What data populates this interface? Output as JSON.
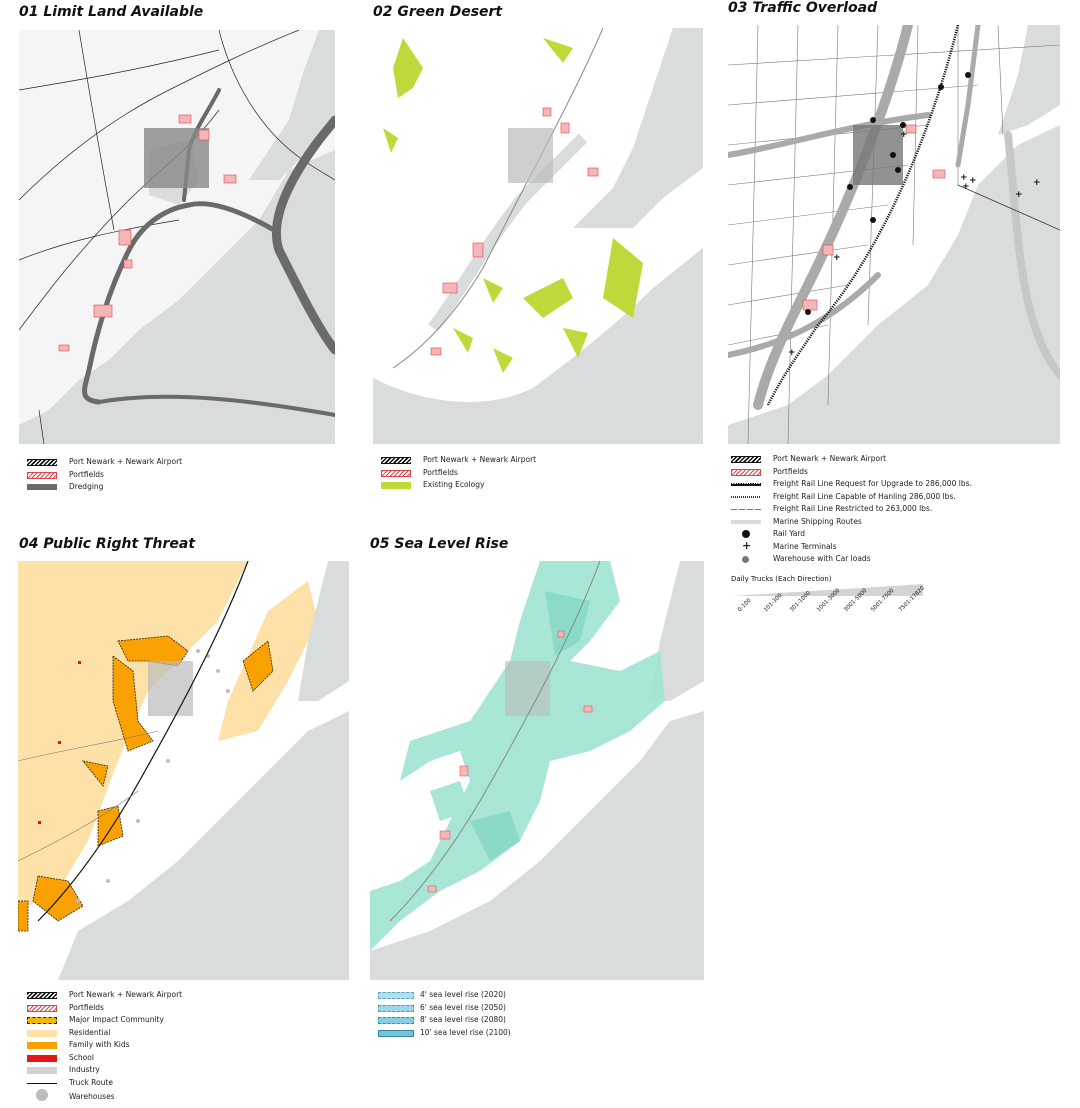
{
  "panels": [
    {
      "title": "01 Limit Land Available",
      "legend": [
        "Port Newark + Newark Airport",
        "Portfields",
        "Dredging"
      ]
    },
    {
      "title": "02 Green Desert",
      "legend": [
        "Port Newark + Newark Airport",
        "Portfields",
        "Existing Ecology"
      ]
    },
    {
      "title": "03 Traffic Overload",
      "legend": [
        "Port Newark + Newark Airport",
        "Portfields",
        "Freight Rail Line Request for Upgrade to 286,000 lbs.",
        "Freight Rail Line Capable of Hanling 286,000 lbs.",
        "Freight Rail Line Restricted to 263,000 lbs.",
        "Marine Shipping Routes",
        "Rail Yard",
        "Marine Terminals",
        "Warehouse with Car loads"
      ],
      "scale": {
        "title": "Daily Trucks (Each Direction)",
        "ticks": [
          "0-100",
          "101-300",
          "301-1000",
          "1001-3000",
          "3001-5000",
          "5001-7500",
          "7501-17820"
        ]
      }
    },
    {
      "title": "04 Public Right Threat",
      "legend": [
        "Port Newark + Newark Airport",
        "Portfields",
        "Major Impact Community",
        "Residential",
        "Family with Kids",
        "School",
        "Industry",
        "Truck Route",
        "Warehouses"
      ]
    },
    {
      "title": "05 Sea Level Rise",
      "legend": [
        "4' sea level rise (2020)",
        "6' sea level rise (2050)",
        "8' sea level rise (2080)",
        "10' sea level rise (2100)"
      ]
    }
  ],
  "colors": {
    "water": "#d9dcdc",
    "land": "#f4f4f4",
    "dredging": "#6a6a6a",
    "ecology": "#bfd83a",
    "portfields": "#e0444a",
    "residential": "#fde1a8",
    "family_with_kids": "#f9a100",
    "school": "#e81515",
    "industry": "#d2d2d2",
    "sea_level_rise": "#9fe3d3"
  },
  "icons": [
    "rail-yard-dot",
    "marine-terminal-plus",
    "warehouse-dot"
  ]
}
